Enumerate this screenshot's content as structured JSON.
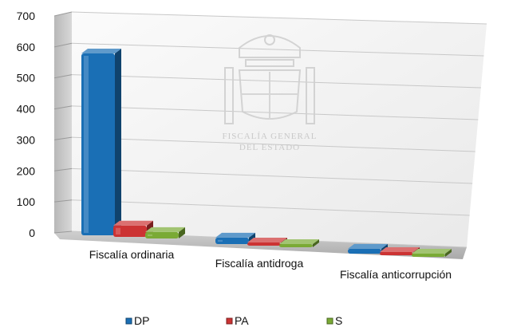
{
  "chart_data": {
    "type": "bar",
    "three_d": true,
    "categories": [
      "Fiscalía ordinaria",
      "Fiscalía  antidroga",
      "Fiscalía anticorrupción"
    ],
    "series": [
      {
        "name": "DP",
        "values": [
          560,
          20,
          15
        ],
        "color": "#1a6fb5"
      },
      {
        "name": "PA",
        "values": [
          35,
          5,
          6
        ],
        "color": "#cc3333"
      },
      {
        "name": "S",
        "values": [
          20,
          5,
          2
        ],
        "color": "#7aaa35"
      }
    ],
    "ylim": [
      0,
      700
    ],
    "yticks": [
      "0",
      "100",
      "200",
      "300",
      "400",
      "500",
      "600",
      "700"
    ],
    "grid": true,
    "legend_position": "bottom",
    "watermark": {
      "line1": "FISCALÍA GENERAL",
      "line2": "DEL ESTADO"
    }
  }
}
